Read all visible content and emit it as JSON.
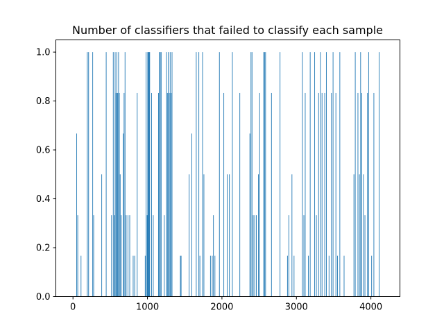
{
  "chart_data": {
    "type": "bar",
    "title": "Number of classifiers that failed to classify each sample",
    "xlabel": "",
    "ylabel": "",
    "xlim": [
      -230,
      4390
    ],
    "ylim": [
      0,
      1.05
    ],
    "xticks": [
      0,
      1000,
      2000,
      3000,
      4000
    ],
    "xtick_labels": [
      "0",
      "1000",
      "2000",
      "3000",
      "4000"
    ],
    "yticks": [
      0.0,
      0.2,
      0.4,
      0.6,
      0.8,
      1.0
    ],
    "ytick_labels": [
      "0.0",
      "0.2",
      "0.4",
      "0.6",
      "0.8",
      "1.0"
    ],
    "grid": false,
    "legend": "none",
    "bar_color": "#1f77b4",
    "points": [
      {
        "x": 50,
        "y": 0.667
      },
      {
        "x": 64,
        "y": 0.333
      },
      {
        "x": 108,
        "y": 0.167
      },
      {
        "x": 192,
        "y": 1.0
      },
      {
        "x": 210,
        "y": 1.0
      },
      {
        "x": 265,
        "y": 1.0
      },
      {
        "x": 278,
        "y": 0.333
      },
      {
        "x": 386,
        "y": 0.5
      },
      {
        "x": 446,
        "y": 1.0
      },
      {
        "x": 518,
        "y": 0.333
      },
      {
        "x": 541,
        "y": 1.0
      },
      {
        "x": 556,
        "y": 0.333
      },
      {
        "x": 566,
        "y": 1.0
      },
      {
        "x": 578,
        "y": 0.833
      },
      {
        "x": 589,
        "y": 1.0
      },
      {
        "x": 600,
        "y": 0.833
      },
      {
        "x": 612,
        "y": 1.0
      },
      {
        "x": 622,
        "y": 0.833
      },
      {
        "x": 634,
        "y": 0.5
      },
      {
        "x": 648,
        "y": 0.333
      },
      {
        "x": 673,
        "y": 0.667
      },
      {
        "x": 686,
        "y": 0.833
      },
      {
        "x": 699,
        "y": 1.0
      },
      {
        "x": 714,
        "y": 0.333
      },
      {
        "x": 738,
        "y": 0.333
      },
      {
        "x": 762,
        "y": 0.333
      },
      {
        "x": 808,
        "y": 0.167
      },
      {
        "x": 828,
        "y": 0.167
      },
      {
        "x": 862,
        "y": 0.833
      },
      {
        "x": 970,
        "y": 0.167
      },
      {
        "x": 982,
        "y": 1.0
      },
      {
        "x": 996,
        "y": 0.333
      },
      {
        "x": 1004,
        "y": 1.0
      },
      {
        "x": 1013,
        "y": 1.0
      },
      {
        "x": 1022,
        "y": 1.0
      },
      {
        "x": 1030,
        "y": 1.0
      },
      {
        "x": 1055,
        "y": 0.833
      },
      {
        "x": 1078,
        "y": 0.333
      },
      {
        "x": 1148,
        "y": 0.833
      },
      {
        "x": 1160,
        "y": 1.0
      },
      {
        "x": 1172,
        "y": 1.0
      },
      {
        "x": 1184,
        "y": 1.0
      },
      {
        "x": 1226,
        "y": 0.333
      },
      {
        "x": 1255,
        "y": 1.0
      },
      {
        "x": 1268,
        "y": 0.833
      },
      {
        "x": 1280,
        "y": 1.0
      },
      {
        "x": 1293,
        "y": 0.833
      },
      {
        "x": 1305,
        "y": 1.0
      },
      {
        "x": 1318,
        "y": 0.833
      },
      {
        "x": 1330,
        "y": 1.0
      },
      {
        "x": 1442,
        "y": 0.167
      },
      {
        "x": 1452,
        "y": 0.167
      },
      {
        "x": 1560,
        "y": 0.5
      },
      {
        "x": 1596,
        "y": 0.667
      },
      {
        "x": 1655,
        "y": 1.0
      },
      {
        "x": 1690,
        "y": 1.0
      },
      {
        "x": 1704,
        "y": 0.167
      },
      {
        "x": 1740,
        "y": 1.0
      },
      {
        "x": 1758,
        "y": 0.5
      },
      {
        "x": 1846,
        "y": 0.167
      },
      {
        "x": 1870,
        "y": 0.167
      },
      {
        "x": 1886,
        "y": 0.333
      },
      {
        "x": 1906,
        "y": 0.167
      },
      {
        "x": 1966,
        "y": 1.0
      },
      {
        "x": 2025,
        "y": 0.833
      },
      {
        "x": 2070,
        "y": 0.5
      },
      {
        "x": 2100,
        "y": 0.5
      },
      {
        "x": 2140,
        "y": 1.0
      },
      {
        "x": 2240,
        "y": 0.833
      },
      {
        "x": 2375,
        "y": 0.667
      },
      {
        "x": 2390,
        "y": 1.0
      },
      {
        "x": 2404,
        "y": 1.0
      },
      {
        "x": 2420,
        "y": 0.333
      },
      {
        "x": 2440,
        "y": 0.333
      },
      {
        "x": 2462,
        "y": 0.333
      },
      {
        "x": 2490,
        "y": 0.5
      },
      {
        "x": 2506,
        "y": 0.833
      },
      {
        "x": 2560,
        "y": 1.0
      },
      {
        "x": 2573,
        "y": 1.0
      },
      {
        "x": 2586,
        "y": 1.0
      },
      {
        "x": 2665,
        "y": 0.833
      },
      {
        "x": 2780,
        "y": 1.0
      },
      {
        "x": 2880,
        "y": 0.167
      },
      {
        "x": 2898,
        "y": 0.333
      },
      {
        "x": 2940,
        "y": 0.5
      },
      {
        "x": 2968,
        "y": 0.167
      },
      {
        "x": 3080,
        "y": 1.0
      },
      {
        "x": 3100,
        "y": 0.333
      },
      {
        "x": 3118,
        "y": 0.833
      },
      {
        "x": 3160,
        "y": 0.167
      },
      {
        "x": 3185,
        "y": 1.0
      },
      {
        "x": 3245,
        "y": 1.0
      },
      {
        "x": 3268,
        "y": 0.333
      },
      {
        "x": 3298,
        "y": 0.833
      },
      {
        "x": 3322,
        "y": 1.0
      },
      {
        "x": 3344,
        "y": 0.833
      },
      {
        "x": 3380,
        "y": 0.833
      },
      {
        "x": 3402,
        "y": 1.0
      },
      {
        "x": 3438,
        "y": 0.167
      },
      {
        "x": 3470,
        "y": 0.833
      },
      {
        "x": 3492,
        "y": 1.0
      },
      {
        "x": 3530,
        "y": 0.833
      },
      {
        "x": 3551,
        "y": 0.167
      },
      {
        "x": 3583,
        "y": 1.0
      },
      {
        "x": 3640,
        "y": 0.167
      },
      {
        "x": 3772,
        "y": 0.5
      },
      {
        "x": 3790,
        "y": 1.0
      },
      {
        "x": 3826,
        "y": 0.833
      },
      {
        "x": 3846,
        "y": 0.5
      },
      {
        "x": 3862,
        "y": 1.0
      },
      {
        "x": 3877,
        "y": 0.833
      },
      {
        "x": 3900,
        "y": 0.5
      },
      {
        "x": 3920,
        "y": 0.333
      },
      {
        "x": 3954,
        "y": 0.833
      },
      {
        "x": 3970,
        "y": 1.0
      },
      {
        "x": 4010,
        "y": 0.167
      },
      {
        "x": 4040,
        "y": 0.833
      },
      {
        "x": 4110,
        "y": 1.0
      }
    ]
  }
}
